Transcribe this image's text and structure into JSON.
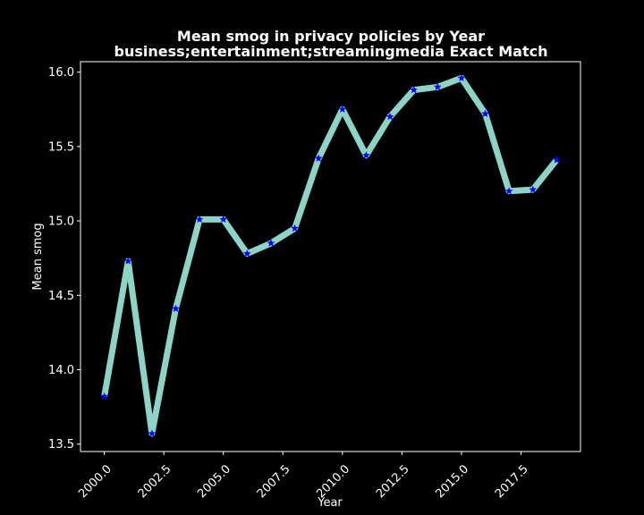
{
  "chart_data": {
    "type": "line",
    "title": "Mean smog in privacy policies by Year",
    "subtitle": "business;entertainment;streamingmedia Exact Match",
    "xlabel": "Year",
    "ylabel": "Mean smog",
    "xlim": [
      1999.0,
      2020.0
    ],
    "ylim": [
      13.45,
      16.07
    ],
    "xticks": [
      2000.0,
      2002.5,
      2005.0,
      2007.5,
      2010.0,
      2012.5,
      2015.0,
      2017.5
    ],
    "xtick_labels": [
      "2000.0",
      "2002.5",
      "2005.0",
      "2007.5",
      "2010.0",
      "2012.5",
      "2015.0",
      "2017.5"
    ],
    "yticks": [
      13.5,
      14.0,
      14.5,
      15.0,
      15.5,
      16.0
    ],
    "ytick_labels": [
      "13.5",
      "14.0",
      "14.5",
      "15.0",
      "15.5",
      "16.0"
    ],
    "grid": false,
    "series": [
      {
        "x": [
          2000,
          2001,
          2002,
          2003,
          2004,
          2005,
          2006,
          2007,
          2008,
          2009,
          2010,
          2011,
          2012,
          2013,
          2014,
          2015,
          2016,
          2017,
          2018,
          2019
        ],
        "y": [
          13.82,
          14.73,
          13.57,
          14.41,
          15.01,
          15.01,
          14.78,
          14.85,
          14.95,
          15.42,
          15.75,
          15.44,
          15.7,
          15.88,
          15.9,
          15.96,
          15.72,
          15.2,
          15.21,
          15.41
        ],
        "line_color": "#8dd3c7",
        "marker": "star",
        "marker_color": "#0000ff"
      }
    ]
  }
}
